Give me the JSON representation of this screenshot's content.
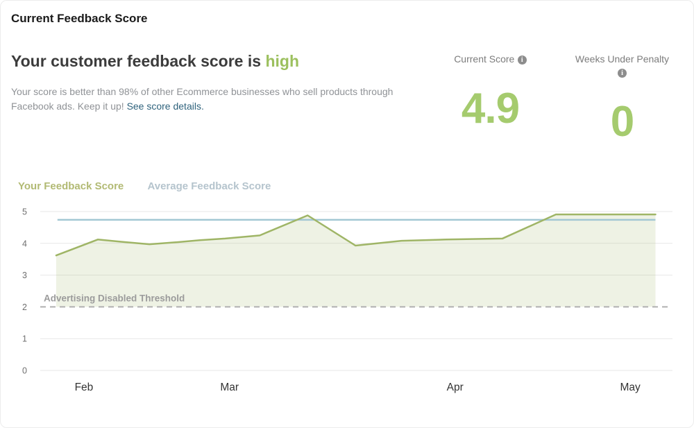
{
  "header": {
    "title": "Current Feedback Score",
    "headline": "Your customer feedback score is ",
    "headline_highlight": "high",
    "description": "Your score is better than 98% of other Ecommerce businesses who sell products through Facebook ads. Keep it up! ",
    "link": "See score details."
  },
  "stats": {
    "current_score_label": "Current Score",
    "current_score_value": "4.9",
    "weeks_label": "Weeks Under Penalty",
    "weeks_value": "0",
    "info_icon_glyph": "i"
  },
  "legend": {
    "your": "Your Feedback Score",
    "average": "Average Feedback Score"
  },
  "colors": {
    "stat_green": "#a5cb6e",
    "line_green": "#9fb566",
    "avg_teal": "#a2c7d3",
    "area_fill": "rgba(162,185,108,0.18)",
    "threshold_gray": "#b0b0b0",
    "legend_green": "#b2ba74",
    "legend_blue": "#b5c4cd",
    "link_teal": "#2e627c"
  },
  "chart_data": {
    "type": "line",
    "title": "Feedback score over time",
    "ylim": [
      0,
      5
    ],
    "y_ticks": [
      5,
      4,
      3,
      2,
      1,
      0
    ],
    "grid": true,
    "legend_position": "top-left",
    "x_ticks": [
      {
        "label": "Feb",
        "f": 0.066
      },
      {
        "label": "Mar",
        "f": 0.297
      },
      {
        "label": "Apr",
        "f": 0.655
      },
      {
        "label": "May",
        "f": 0.933
      }
    ],
    "series": [
      {
        "name": "Your Feedback Score",
        "type": "line-area",
        "points": [
          [
            0.022,
            3.62
          ],
          [
            0.088,
            4.12
          ],
          [
            0.125,
            4.05
          ],
          [
            0.17,
            3.97
          ],
          [
            0.21,
            4.03
          ],
          [
            0.25,
            4.1
          ],
          [
            0.29,
            4.15
          ],
          [
            0.345,
            4.25
          ],
          [
            0.421,
            4.88
          ],
          [
            0.497,
            3.93
          ],
          [
            0.57,
            4.08
          ],
          [
            0.64,
            4.12
          ],
          [
            0.73,
            4.15
          ],
          [
            0.815,
            4.91
          ],
          [
            0.973,
            4.91
          ]
        ]
      },
      {
        "name": "Average Feedback Score",
        "type": "constant-line",
        "constant_value": 4.74,
        "x_start": 0.024,
        "x_end": 0.973
      }
    ],
    "threshold": {
      "label": "Advertising Disabled Threshold",
      "value": 2
    },
    "area": {
      "bottom_value": 2
    }
  }
}
